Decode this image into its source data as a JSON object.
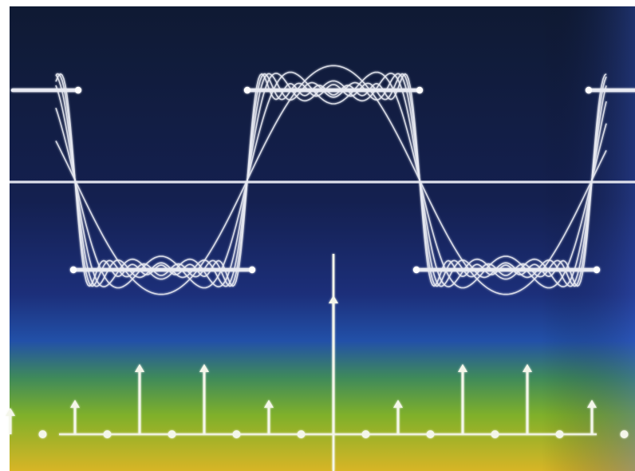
{
  "image": {
    "subject": "fourier-series-square-wave",
    "colors": {
      "bg_top": "#0f1a33",
      "bg_mid": "#1c2f7a",
      "bg_blue": "#2250a8",
      "bg_green": "#5fae2f",
      "bg_yellow": "#d8b526",
      "stroke": "#e8eaf2",
      "spectrum": "#f4f6ea"
    },
    "harmonics_drawn": [
      1,
      3,
      5,
      7,
      9,
      11
    ],
    "spectrum": {
      "harmonic_amplitudes": [
        {
          "k": -11,
          "a": 0.0
        },
        {
          "k": -10,
          "a": 0.09
        },
        {
          "k": -9,
          "a": 0.0
        },
        {
          "k": -8,
          "a": 0.12
        },
        {
          "k": -7,
          "a": 0.0
        },
        {
          "k": -6,
          "a": 0.25
        },
        {
          "k": -5,
          "a": 0.0
        },
        {
          "k": -4,
          "a": 0.25
        },
        {
          "k": -3,
          "a": 0.0
        },
        {
          "k": -2,
          "a": 0.12
        },
        {
          "k": -1,
          "a": 0.0
        },
        {
          "k": 0,
          "a": 0.5
        }
      ]
    }
  }
}
